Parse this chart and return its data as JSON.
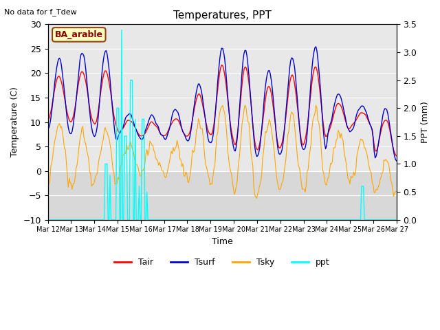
{
  "title": "Temperatures, PPT",
  "no_data_text": "No data for f_Tdew",
  "site_label": "BA_arable",
  "xlabel": "Time",
  "ylabel_left": "Temperature (C)",
  "ylabel_right": "PPT (mm)",
  "ylim_left": [
    -10,
    30
  ],
  "ylim_right": [
    0.0,
    3.5
  ],
  "xlim": [
    0,
    15
  ],
  "x_tick_labels": [
    "Mar 12",
    "Mar 13",
    "Mar 14",
    "Mar 15",
    "Mar 16",
    "Mar 17",
    "Mar 18",
    "Mar 19",
    "Mar 20",
    "Mar 21",
    "Mar 22",
    "Mar 23",
    "Mar 24",
    "Mar 25",
    "Mar 26",
    "Mar 27"
  ],
  "x_tick_positions": [
    0,
    1,
    2,
    3,
    4,
    5,
    6,
    7,
    8,
    9,
    10,
    11,
    12,
    13,
    14,
    15
  ],
  "colors": {
    "Tair": "#ff0000",
    "Tsurf": "#0000cc",
    "Tsky": "#ffa500",
    "ppt": "#00ffff"
  },
  "plot_bg_color_upper": "#dcdcdc",
  "plot_bg_color_lower": "#c8c8c8",
  "fig_bg_color": "#ffffff",
  "site_box_facecolor": "#ffffc0",
  "site_box_edgecolor": "#8b4513",
  "legend_labels": [
    "Tair",
    "Tsurf",
    "Tsky",
    "ppt"
  ]
}
